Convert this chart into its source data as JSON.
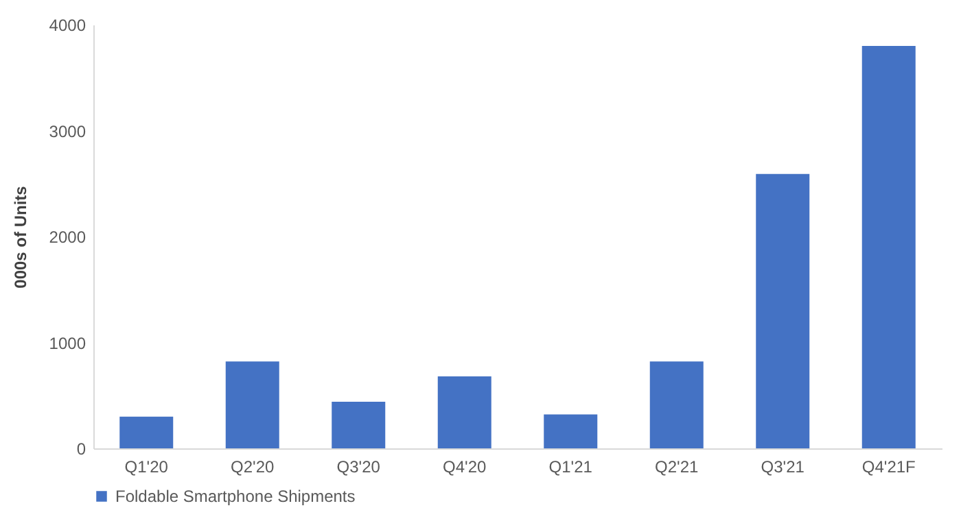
{
  "chart_data": {
    "type": "bar",
    "ylabel": "000s of Units",
    "categories": [
      "Q1'20",
      "Q2'20",
      "Q3'20",
      "Q4'20",
      "Q1'21",
      "Q2'21",
      "Q3'21",
      "Q4'21F"
    ],
    "series": [
      {
        "name": "Foldable Smartphone Shipments",
        "color": "#4472c4",
        "values": [
          300,
          820,
          440,
          680,
          320,
          820,
          2590,
          3800
        ]
      }
    ],
    "ylim": [
      0,
      4000
    ],
    "yticks": [
      0,
      1000,
      2000,
      3000,
      4000
    ],
    "grid": false,
    "legend": "bottom"
  }
}
